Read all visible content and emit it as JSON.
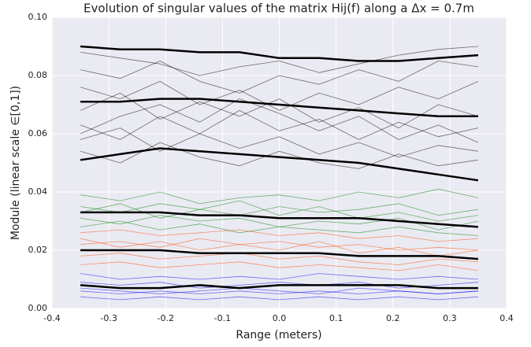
{
  "chart_data": {
    "type": "line",
    "title": "Evolution of singular values of the matrix Hij(f) along a Δx = 0.7m",
    "xlabel": "Range (meters)",
    "ylabel": "Module (linear scale ∈[0,1])",
    "x": [
      -0.35,
      -0.28,
      -0.21,
      -0.14,
      -0.07,
      0,
      0.07,
      0.14,
      0.21,
      0.28,
      0.35
    ],
    "xlim": [
      -0.4,
      0.4
    ],
    "xticks": [
      -0.4,
      -0.3,
      -0.2,
      -0.1,
      {
        "value": 0,
        "label": "0.0"
      },
      0.1,
      0.2,
      0.3,
      0.4
    ],
    "ylim": [
      0,
      0.1
    ],
    "yticks": [
      {
        "value": 0,
        "label": "0.00"
      },
      {
        "value": 0.02,
        "label": "0.02"
      },
      {
        "value": 0.04,
        "label": "0.04"
      },
      {
        "value": 0.06,
        "label": "0.06"
      },
      {
        "value": 0.08,
        "label": "0.08"
      },
      {
        "value": 0.1,
        "label": "0.10"
      }
    ],
    "grid": true,
    "series": [
      {
        "color": "#000000",
        "linewidth": 0.8,
        "values": [
          0.088,
          0.086,
          0.084,
          0.08,
          0.083,
          0.085,
          0.081,
          0.084,
          0.087,
          0.089,
          0.09
        ]
      },
      {
        "color": "#000000",
        "linewidth": 0.8,
        "values": [
          0.082,
          0.079,
          0.085,
          0.078,
          0.074,
          0.08,
          0.077,
          0.082,
          0.078,
          0.085,
          0.083
        ]
      },
      {
        "color": "#000000",
        "linewidth": 0.8,
        "values": [
          0.076,
          0.072,
          0.078,
          0.07,
          0.075,
          0.068,
          0.074,
          0.07,
          0.076,
          0.072,
          0.078
        ]
      },
      {
        "color": "#000000",
        "linewidth": 0.8,
        "values": [
          0.068,
          0.074,
          0.065,
          0.071,
          0.066,
          0.072,
          0.064,
          0.069,
          0.062,
          0.07,
          0.066
        ]
      },
      {
        "color": "#000000",
        "linewidth": 0.8,
        "values": [
          0.063,
          0.058,
          0.066,
          0.06,
          0.068,
          0.061,
          0.065,
          0.058,
          0.064,
          0.059,
          0.062
        ]
      },
      {
        "color": "#000000",
        "linewidth": 0.8,
        "values": [
          0.058,
          0.062,
          0.054,
          0.06,
          0.055,
          0.059,
          0.053,
          0.057,
          0.052,
          0.056,
          0.054
        ]
      },
      {
        "color": "#000000",
        "linewidth": 0.8,
        "values": [
          0.054,
          0.05,
          0.057,
          0.052,
          0.049,
          0.054,
          0.05,
          0.048,
          0.053,
          0.049,
          0.051
        ]
      },
      {
        "color": "#000000",
        "linewidth": 0.8,
        "values": [
          0.06,
          0.066,
          0.07,
          0.064,
          0.072,
          0.067,
          0.061,
          0.066,
          0.058,
          0.063,
          0.057
        ]
      },
      {
        "color": "#008000",
        "linewidth": 0.8,
        "values": [
          0.039,
          0.037,
          0.04,
          0.036,
          0.038,
          0.039,
          0.037,
          0.04,
          0.038,
          0.041,
          0.038
        ]
      },
      {
        "color": "#008000",
        "linewidth": 0.8,
        "values": [
          0.035,
          0.033,
          0.036,
          0.034,
          0.032,
          0.035,
          0.033,
          0.034,
          0.036,
          0.032,
          0.034
        ]
      },
      {
        "color": "#008000",
        "linewidth": 0.8,
        "values": [
          0.031,
          0.029,
          0.032,
          0.03,
          0.031,
          0.028,
          0.03,
          0.029,
          0.031,
          0.027,
          0.03
        ]
      },
      {
        "color": "#008000",
        "linewidth": 0.8,
        "values": [
          0.028,
          0.03,
          0.027,
          0.029,
          0.026,
          0.028,
          0.027,
          0.026,
          0.028,
          0.026,
          0.025
        ]
      },
      {
        "color": "#008000",
        "linewidth": 0.8,
        "values": [
          0.033,
          0.036,
          0.031,
          0.034,
          0.037,
          0.032,
          0.035,
          0.031,
          0.033,
          0.03,
          0.032
        ]
      },
      {
        "color": "#ff4500",
        "linewidth": 0.8,
        "values": [
          0.026,
          0.027,
          0.025,
          0.026,
          0.027,
          0.025,
          0.026,
          0.024,
          0.025,
          0.023,
          0.024
        ]
      },
      {
        "color": "#ff4500",
        "linewidth": 0.8,
        "values": [
          0.022,
          0.023,
          0.021,
          0.024,
          0.022,
          0.023,
          0.021,
          0.022,
          0.02,
          0.021,
          0.02
        ]
      },
      {
        "color": "#ff4500",
        "linewidth": 0.8,
        "values": [
          0.018,
          0.019,
          0.017,
          0.018,
          0.019,
          0.017,
          0.018,
          0.016,
          0.015,
          0.017,
          0.016
        ]
      },
      {
        "color": "#ff4500",
        "linewidth": 0.8,
        "values": [
          0.015,
          0.016,
          0.014,
          0.015,
          0.016,
          0.014,
          0.015,
          0.014,
          0.013,
          0.015,
          0.013
        ]
      },
      {
        "color": "#ff4500",
        "linewidth": 0.8,
        "values": [
          0.024,
          0.021,
          0.023,
          0.02,
          0.022,
          0.02,
          0.023,
          0.019,
          0.021,
          0.018,
          0.02
        ]
      },
      {
        "color": "#0000ff",
        "linewidth": 0.8,
        "values": [
          0.012,
          0.01,
          0.011,
          0.01,
          0.011,
          0.01,
          0.012,
          0.011,
          0.01,
          0.011,
          0.01
        ]
      },
      {
        "color": "#0000ff",
        "linewidth": 0.8,
        "values": [
          0.009,
          0.008,
          0.009,
          0.007,
          0.008,
          0.009,
          0.008,
          0.009,
          0.007,
          0.008,
          0.009
        ]
      },
      {
        "color": "#0000ff",
        "linewidth": 0.8,
        "values": [
          0.006,
          0.005,
          0.006,
          0.005,
          0.006,
          0.005,
          0.006,
          0.005,
          0.006,
          0.005,
          0.006
        ]
      },
      {
        "color": "#0000ff",
        "linewidth": 0.8,
        "values": [
          0.004,
          0.003,
          0.004,
          0.003,
          0.004,
          0.003,
          0.004,
          0.003,
          0.004,
          0.003,
          0.004
        ]
      },
      {
        "color": "#0000ff",
        "linewidth": 0.8,
        "values": [
          0.007,
          0.006,
          0.005,
          0.006,
          0.007,
          0.006,
          0.005,
          0.007,
          0.006,
          0.005,
          0.006
        ]
      },
      {
        "color": "#000000",
        "linewidth": 2.5,
        "values": [
          0.09,
          0.089,
          0.089,
          0.088,
          0.088,
          0.086,
          0.086,
          0.085,
          0.085,
          0.086,
          0.087
        ]
      },
      {
        "color": "#000000",
        "linewidth": 2.5,
        "values": [
          0.071,
          0.071,
          0.072,
          0.072,
          0.071,
          0.07,
          0.069,
          0.068,
          0.067,
          0.066,
          0.066
        ]
      },
      {
        "color": "#000000",
        "linewidth": 2.5,
        "values": [
          0.051,
          0.053,
          0.055,
          0.054,
          0.053,
          0.052,
          0.051,
          0.05,
          0.048,
          0.046,
          0.044
        ]
      },
      {
        "color": "#000000",
        "linewidth": 2.5,
        "values": [
          0.033,
          0.033,
          0.033,
          0.032,
          0.032,
          0.031,
          0.031,
          0.031,
          0.03,
          0.029,
          0.028
        ]
      },
      {
        "color": "#000000",
        "linewidth": 2.5,
        "values": [
          0.02,
          0.02,
          0.02,
          0.019,
          0.019,
          0.019,
          0.019,
          0.018,
          0.018,
          0.018,
          0.017
        ]
      },
      {
        "color": "#000000",
        "linewidth": 2.5,
        "values": [
          0.008,
          0.007,
          0.007,
          0.008,
          0.007,
          0.008,
          0.008,
          0.008,
          0.008,
          0.007,
          0.007
        ]
      }
    ]
  }
}
